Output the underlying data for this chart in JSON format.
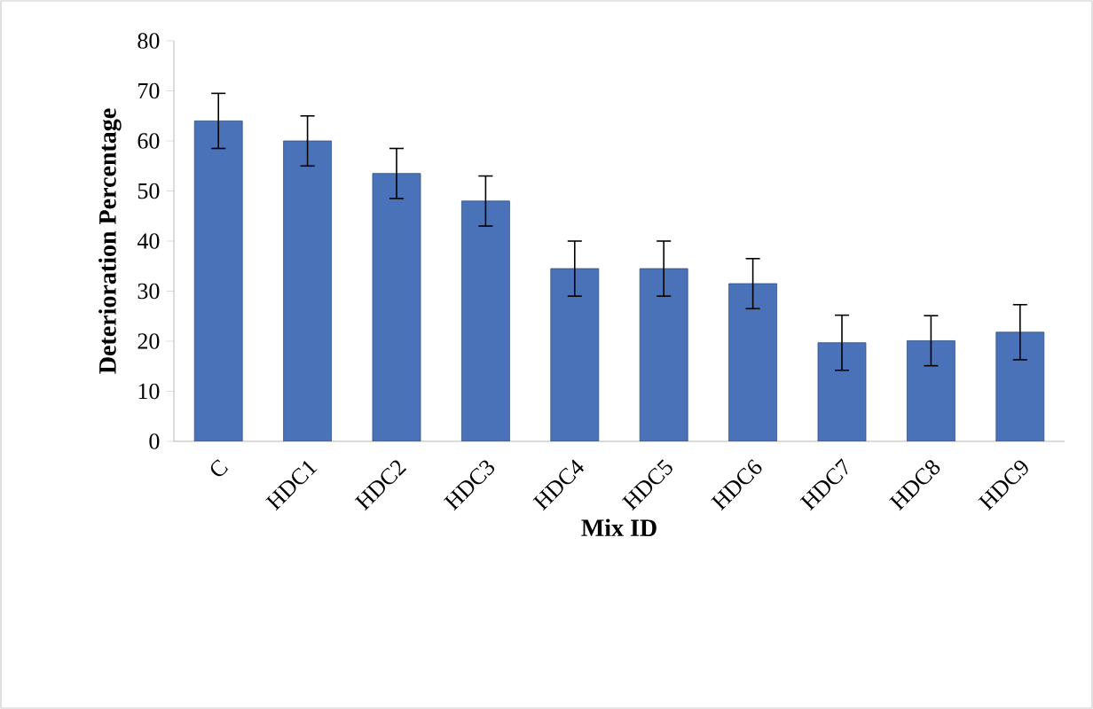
{
  "chart_data": {
    "type": "bar",
    "xlabel": "Mix ID",
    "ylabel": "Deterioration Percentage",
    "categories": [
      "C",
      "HDC1",
      "HDC2",
      "HDC3",
      "HDC4",
      "HDC5",
      "HDC6",
      "HDC7",
      "HDC8",
      "HDC9"
    ],
    "values": [
      64,
      60,
      53.5,
      48,
      34.5,
      34.5,
      31.5,
      19.7,
      20.1,
      21.8
    ],
    "errors": [
      5.5,
      5,
      5,
      5,
      5.5,
      5.5,
      5,
      5.5,
      5,
      5.5
    ],
    "color": "#4a72b8",
    "ylim": [
      0,
      80
    ],
    "yticks": [
      0,
      10,
      20,
      30,
      40,
      50,
      60,
      70,
      80
    ],
    "grid": false
  }
}
